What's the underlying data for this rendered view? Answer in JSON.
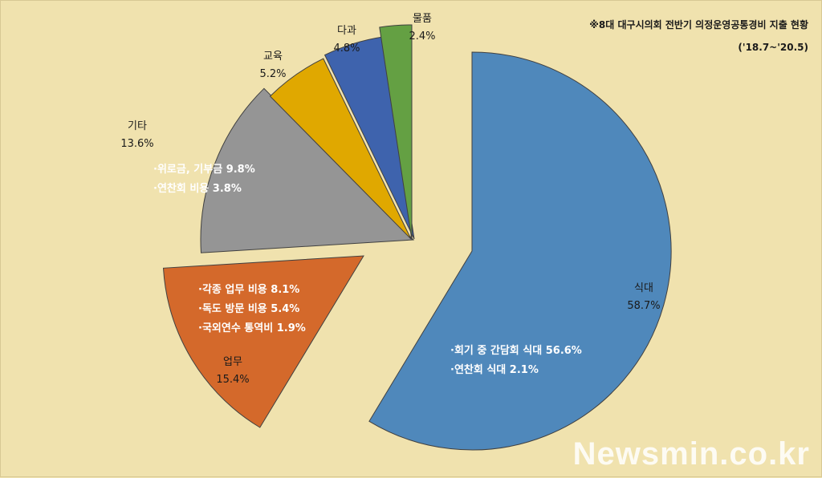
{
  "chart_data": {
    "type": "pie",
    "title": "※8대 대구시의회 전반기 의정운영공통경비 지출 현황",
    "subtitle": "('18.7~'20.5)",
    "slices": [
      {
        "label": "식대",
        "pct": "58.7%",
        "value": 58.7,
        "color": "#4f88bb",
        "details": [
          {
            "name": "·회기 중 간담회 식대",
            "pct": "56.6%"
          },
          {
            "name": "·연찬회 식대",
            "pct": "2.1%"
          }
        ]
      },
      {
        "label": "업무",
        "pct": "15.4%",
        "value": 15.4,
        "color": "#d4692b",
        "details": [
          {
            "name": "·각종 업무 비용",
            "pct": "8.1%"
          },
          {
            "name": "·독도 방문 비용",
            "pct": "5.4%"
          },
          {
            "name": "·국외연수 통역비",
            "pct": "1.9%"
          }
        ]
      },
      {
        "label": "기타",
        "pct": "13.6%",
        "value": 13.6,
        "color": "#959595",
        "details": [
          {
            "name": "·위로금, 기부금",
            "pct": "9.8%"
          },
          {
            "name": "·연찬회 비용",
            "pct": "3.8%"
          }
        ]
      },
      {
        "label": "교육",
        "pct": "5.2%",
        "value": 5.2,
        "color": "#e0a800",
        "details": []
      },
      {
        "label": "다과",
        "pct": "4.8%",
        "value": 4.8,
        "color": "#3e63ad",
        "details": []
      },
      {
        "label": "물품",
        "pct": "2.4%",
        "value": 2.4,
        "color": "#64a043",
        "details": []
      }
    ]
  },
  "watermark": "Newsmin.co.kr"
}
